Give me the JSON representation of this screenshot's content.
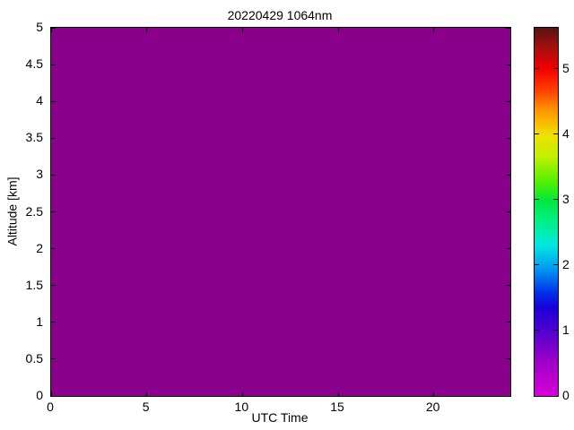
{
  "figure": {
    "background_color": "#FFFFFF",
    "frame_color": "#000000"
  },
  "chart_data": {
    "type": "heatmap",
    "title": "20220429 1064nm",
    "xlabel": "UTC Time",
    "ylabel": "Altitude [km]",
    "xlim": [
      0,
      24
    ],
    "ylim": [
      0,
      5
    ],
    "x_ticks": [
      0,
      5,
      10,
      15,
      20
    ],
    "y_ticks": [
      0,
      0.5,
      1,
      1.5,
      2,
      2.5,
      3,
      3.5,
      4,
      4.5,
      5
    ],
    "grid": false,
    "uniform_value": 0,
    "values_note": "entire field is a single uniform value (0) rendered as solid purple",
    "fill_color": "#8B008B",
    "colorbar": {
      "min": 0,
      "max": 5.63,
      "ticks": [
        0,
        1,
        2,
        3,
        4,
        5
      ],
      "position": "right",
      "gradient_stops": [
        {
          "pos": 0,
          "color": "#d800d8"
        },
        {
          "pos": 9,
          "color": "#a000c8"
        },
        {
          "pos": 18,
          "color": "#5000d0"
        },
        {
          "pos": 24,
          "color": "#1800d8"
        },
        {
          "pos": 28,
          "color": "#0030e8"
        },
        {
          "pos": 35,
          "color": "#00a0f0"
        },
        {
          "pos": 41,
          "color": "#00e8e0"
        },
        {
          "pos": 48,
          "color": "#00f080"
        },
        {
          "pos": 53,
          "color": "#00e840"
        },
        {
          "pos": 58,
          "color": "#50f000"
        },
        {
          "pos": 65,
          "color": "#c0f000"
        },
        {
          "pos": 71,
          "color": "#f0e000"
        },
        {
          "pos": 78,
          "color": "#ff9000"
        },
        {
          "pos": 83,
          "color": "#ff4000"
        },
        {
          "pos": 89,
          "color": "#f00000"
        },
        {
          "pos": 95,
          "color": "#a01010"
        },
        {
          "pos": 100,
          "color": "#581212"
        }
      ]
    }
  }
}
